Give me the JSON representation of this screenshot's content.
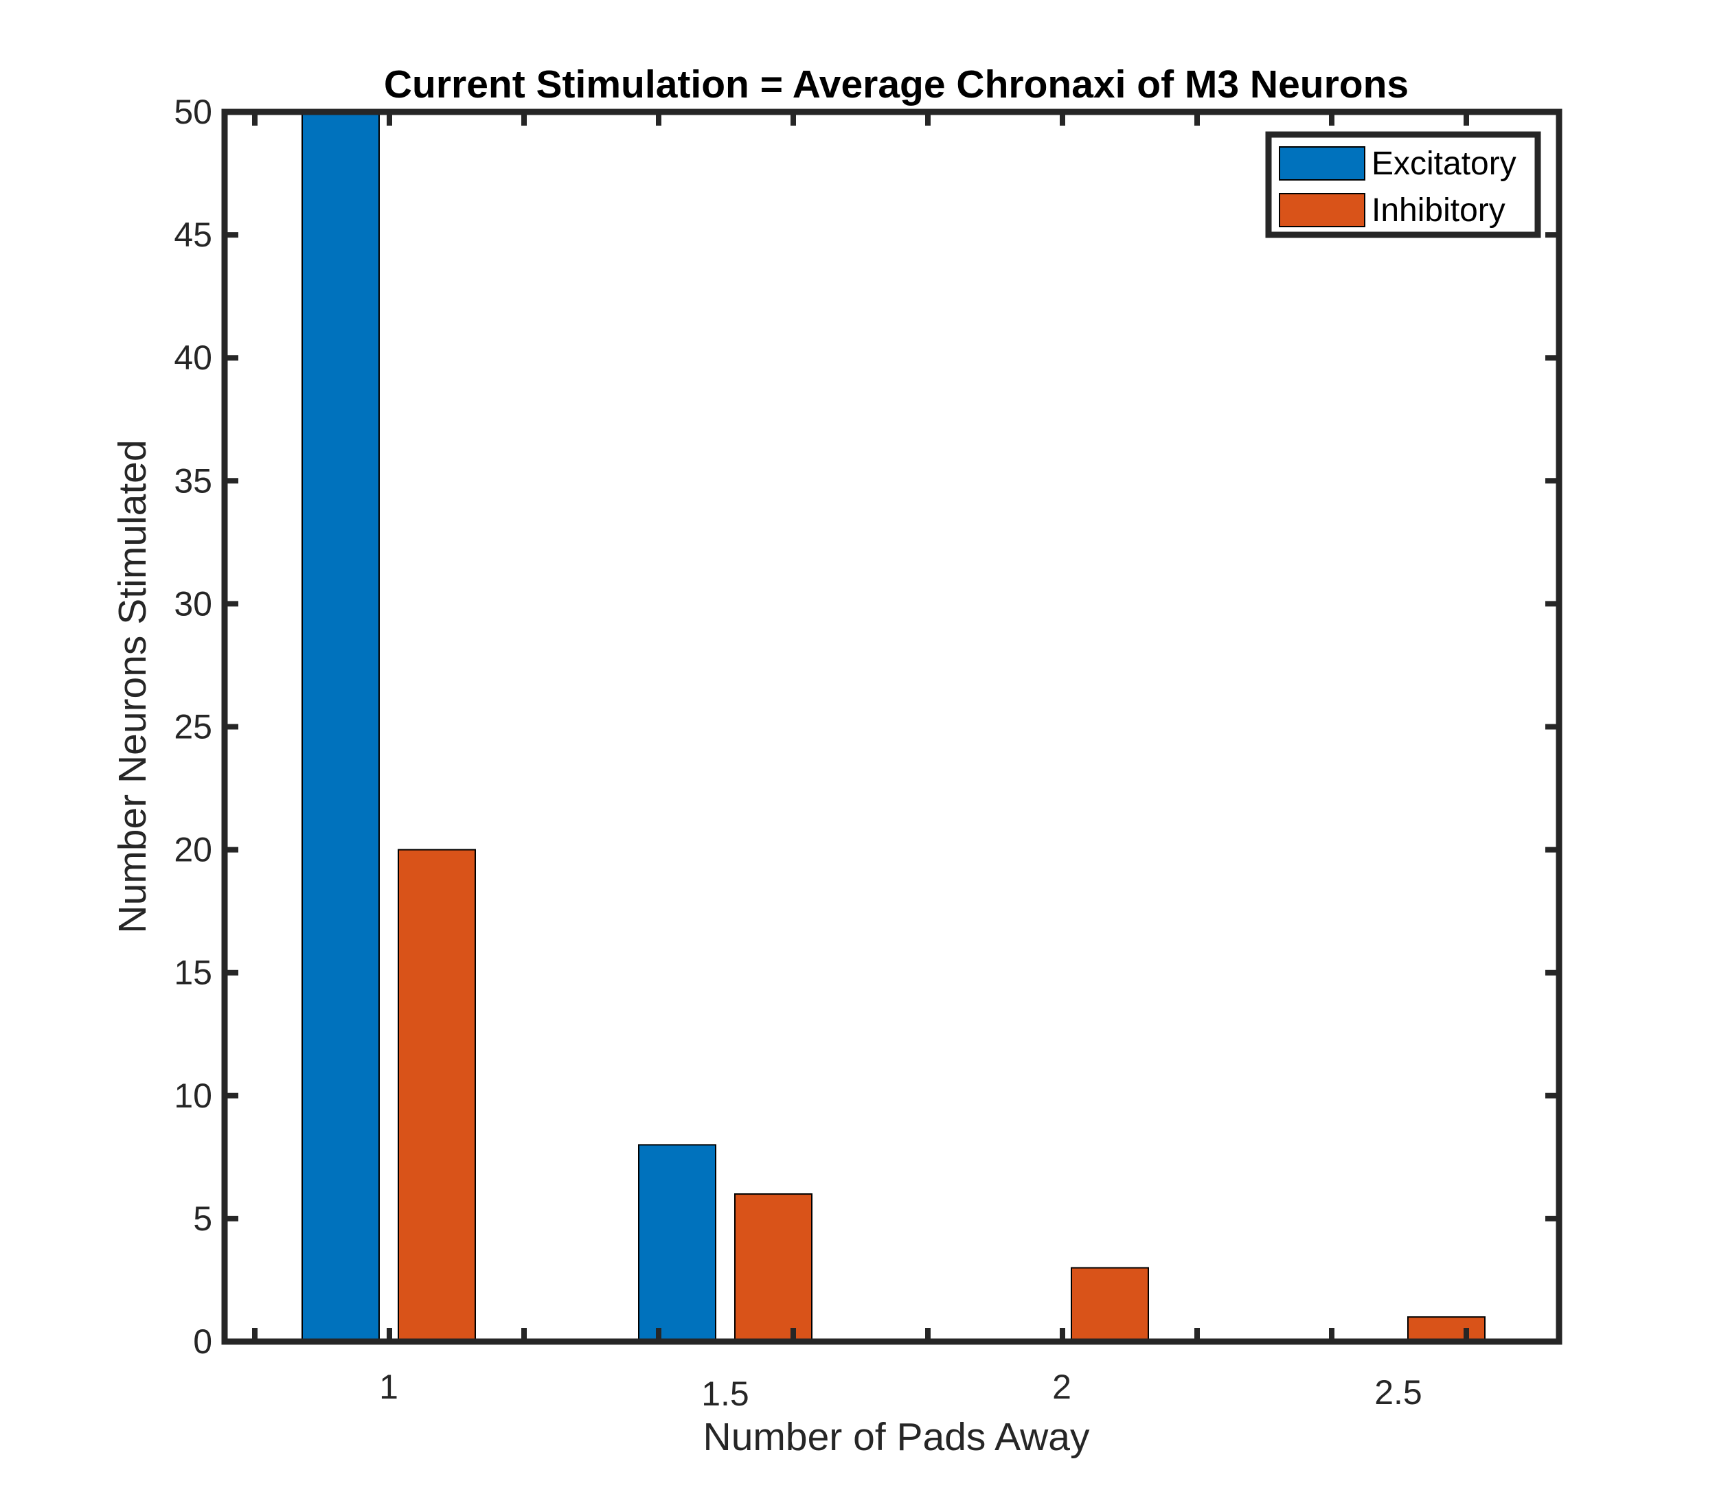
{
  "chart_data": {
    "type": "bar",
    "title": "Current Stimulation = Average Chronaxi of M3 Neurons",
    "xlabel": "Number of Pads Away",
    "ylabel": "Number Neurons Stimulated",
    "categories": [
      "1",
      "1.5",
      "2",
      "2.5"
    ],
    "xticks": [
      "1",
      "1.5",
      "2",
      "2.5"
    ],
    "yticks": [
      "0",
      "5",
      "10",
      "15",
      "20",
      "25",
      "30",
      "35",
      "40",
      "45",
      "50"
    ],
    "ylim": [
      0,
      50
    ],
    "grid": false,
    "legend_position": "top-right",
    "series": [
      {
        "name": "Excitatory",
        "color": "#0072BD",
        "values": [
          50,
          8,
          0,
          0
        ]
      },
      {
        "name": "Inhibitory",
        "color": "#D95319",
        "values": [
          20,
          6,
          3,
          1
        ]
      }
    ]
  }
}
